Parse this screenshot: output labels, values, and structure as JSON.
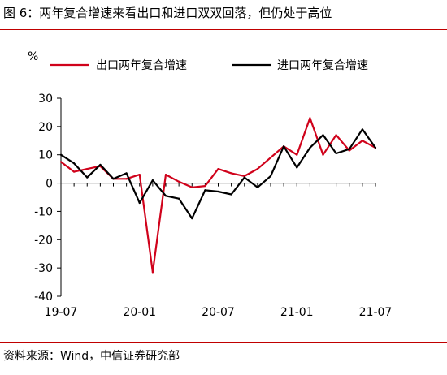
{
  "figure": {
    "title": "图 6：两年复合增速来看出口和进口双双回落，但仍处于高位",
    "source": "资料来源：Wind，中信证券研究部"
  },
  "chart_data": {
    "type": "line",
    "ylabel": "%",
    "ylim": [
      -40,
      30
    ],
    "yticks": [
      "30",
      "20",
      "10",
      "0",
      "-10",
      "-20",
      "-30",
      "-40"
    ],
    "xtick_labels": [
      "19-07",
      "20-01",
      "20-07",
      "21-01",
      "21-07"
    ],
    "x": [
      "2019-07",
      "2019-08",
      "2019-09",
      "2019-10",
      "2019-11",
      "2019-12",
      "2020-01",
      "2020-02",
      "2020-03",
      "2020-04",
      "2020-05",
      "2020-06",
      "2020-07",
      "2020-08",
      "2020-09",
      "2020-10",
      "2020-11",
      "2020-12",
      "2021-01",
      "2021-02",
      "2021-03",
      "2021-04",
      "2021-05",
      "2021-06",
      "2021-07"
    ],
    "series": [
      {
        "name": "出口两年复合增速",
        "color": "#d0021b",
        "values": [
          7.5,
          4.0,
          5.0,
          6.0,
          1.5,
          1.5,
          3.0,
          -31.5,
          3.0,
          0.5,
          -1.5,
          -1.0,
          5.0,
          3.5,
          2.5,
          5.0,
          9.0,
          13.0,
          10.0,
          23.0,
          10.0,
          17.0,
          11.5,
          15.0,
          12.5
        ]
      },
      {
        "name": "进口两年复合增速",
        "color": "#000000",
        "values": [
          10.0,
          7.0,
          2.0,
          6.5,
          1.5,
          3.5,
          -7.0,
          1.0,
          -4.5,
          -5.5,
          -12.5,
          -2.5,
          -3.0,
          -4.0,
          2.0,
          -1.5,
          2.5,
          13.0,
          5.5,
          12.5,
          17.0,
          10.5,
          12.0,
          19.0,
          12.5
        ]
      }
    ]
  }
}
